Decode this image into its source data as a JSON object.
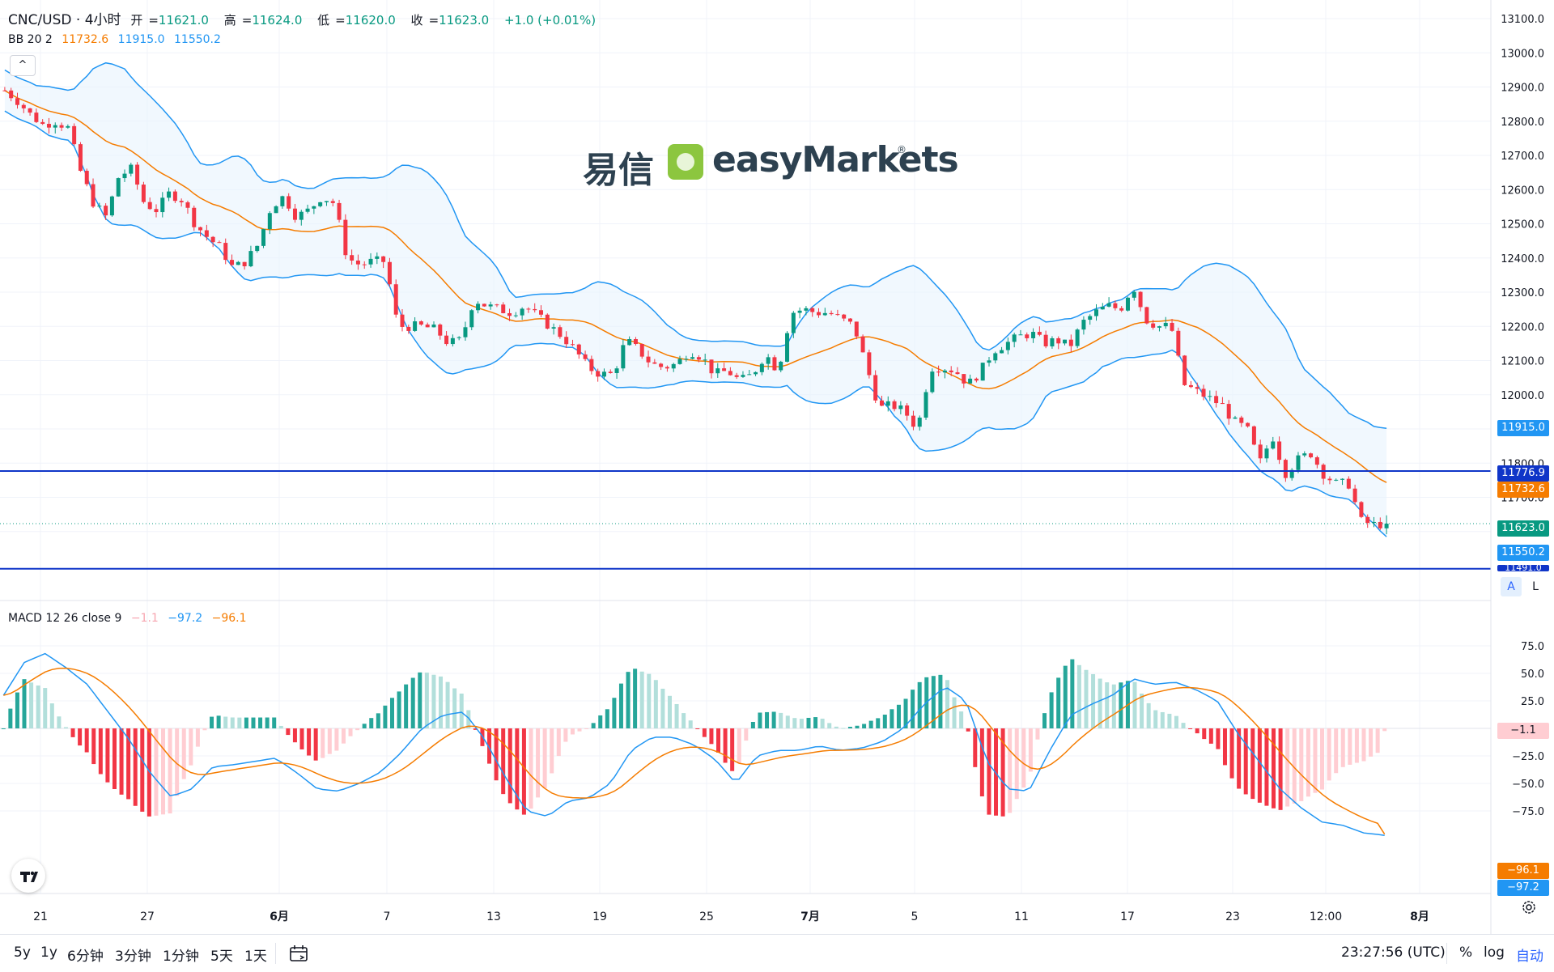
{
  "header": {
    "symbol": "CNC/USD · 4小时",
    "open_label": "开",
    "open": "11621.0",
    "high_label": "高",
    "high": "11624.0",
    "low_label": "低",
    "low": "11620.0",
    "close_label": "收",
    "close": "11623.0",
    "change": "+1.0 (+0.01%)"
  },
  "bb_legend": {
    "name": "BB 20 2",
    "basis": "11732.6",
    "upper": "11915.0",
    "lower": "11550.2"
  },
  "macd_legend": {
    "name": "MACD 12 26 close 9",
    "hist": "−1.1",
    "macd": "−97.2",
    "signal": "−96.1"
  },
  "collapse_icon": "^",
  "watermark": {
    "cn": "易信",
    "en": "easyMarkets",
    "icon": "green-rounded-square-logo",
    "registered": "®"
  },
  "price_labels": {
    "upper_band": "11915.0",
    "h_line_top": "11776.9",
    "basis": "11732.6",
    "last": "11623.0",
    "lower_band": "11550.2",
    "h_line_bottom": "11491.0"
  },
  "macd_labels": {
    "hist": "−1.1",
    "signal": "−96.1",
    "macd": "−97.2"
  },
  "scale_buttons": {
    "auto": "A",
    "log": "L"
  },
  "toolbar": {
    "ranges": [
      "5y",
      "1y",
      "6分钟",
      "3分钟",
      "1分钟",
      "5天",
      "1天"
    ],
    "calendar_icon": "calendar-range-icon",
    "clock": "23:27:56 (UTC)",
    "percent": "%",
    "log": "log",
    "auto": "自动",
    "settings_icon": "gear-icon"
  },
  "colors": {
    "up": "#089981",
    "down": "#f23645",
    "bb_band": "#2196f3",
    "bb_basis": "#f57c00",
    "bb_fill": "#e8f4fd",
    "h_line": "#0f35c8",
    "macd_line": "#2196f3",
    "signal_line": "#f57c00",
    "hist_up_strong": "#26a69a",
    "hist_up_weak": "#b2dfdb",
    "hist_down_strong": "#f23645",
    "hist_down_weak": "#ffcdd2"
  },
  "chart_data": [
    {
      "type": "candlestick",
      "title": "CNC/USD · 4小时",
      "y_axis_ticks": [
        "13100.0",
        "13000.0",
        "12900.0",
        "12800.0",
        "12700.0",
        "12600.0",
        "12500.0",
        "12400.0",
        "12300.0",
        "12200.0",
        "12100.0",
        "12000.0",
        "11900.0",
        "11800.0",
        "11700.0",
        "11600.0"
      ],
      "ylim": [
        11500,
        13110
      ],
      "x_axis_ticks": [
        "21",
        "27",
        "6月",
        "7",
        "13",
        "19",
        "25",
        "7月",
        "5",
        "11",
        "17",
        "23",
        "12:00",
        "8月"
      ],
      "horizontal_lines": [
        11776.9,
        11491.0
      ],
      "last_price": 11623.0,
      "bollinger": {
        "period": 20,
        "mult": 2,
        "basis": 11732.6,
        "upper": 11915.0,
        "lower": 11550.2
      },
      "close_path": [
        12890,
        12860,
        12820,
        12790,
        12800,
        12780,
        12650,
        12560,
        12520,
        12640,
        12660,
        12560,
        12540,
        12590,
        12570,
        12500,
        12460,
        12430,
        12370,
        12390,
        12440,
        12550,
        12580,
        12520,
        12540,
        12580,
        12560,
        12400,
        12380,
        12390,
        12390,
        12200,
        12200,
        12200,
        12190,
        12150,
        12160,
        12280,
        12260,
        12250,
        12240,
        12260,
        12230,
        12200,
        12170,
        12130,
        12080,
        12060,
        12060,
        12160,
        12130,
        12090,
        12080,
        12090,
        12130,
        12110,
        12060,
        12070,
        12040,
        12060,
        12120,
        12070,
        12240,
        12250,
        12240,
        12240,
        12220,
        12200,
        12080,
        11960,
        11970,
        11950,
        11900,
        12080,
        12080,
        12070,
        12030,
        12070,
        12130,
        12150,
        12170,
        12180,
        12150,
        12160,
        12140,
        12210,
        12240,
        12260,
        12250,
        12320,
        12220,
        12200,
        12200,
        12030,
        12010,
        11990,
        11970,
        11920,
        11900,
        11800,
        11880,
        11770,
        11810,
        11830,
        11770,
        11740,
        11740,
        11630,
        11620,
        11623
      ]
    },
    {
      "type": "macd",
      "title": "MACD 12 26 close 9",
      "y_axis_ticks": [
        "75.0",
        "50.0",
        "25.0",
        "0.0",
        "−25.0",
        "−50.0",
        "−75.0"
      ],
      "ylim": [
        -110,
        85
      ],
      "macd_path": [
        30,
        60,
        68,
        55,
        40,
        15,
        -10,
        -40,
        -62,
        -55,
        -35,
        -33,
        -30,
        -27,
        -40,
        -55,
        -57,
        -50,
        -40,
        -22,
        0,
        12,
        15,
        -10,
        -45,
        -75,
        -80,
        -66,
        -63,
        -50,
        -20,
        -8,
        -8,
        -15,
        -28,
        -50,
        -25,
        -20,
        -20,
        -16,
        -20,
        -18,
        -12,
        0,
        22,
        38,
        25,
        -30,
        -55,
        -57,
        -20,
        12,
        22,
        30,
        45,
        40,
        42,
        35,
        25,
        -5,
        -30,
        -55,
        -72,
        -85,
        -88,
        -95,
        -97
      ]
    }
  ]
}
